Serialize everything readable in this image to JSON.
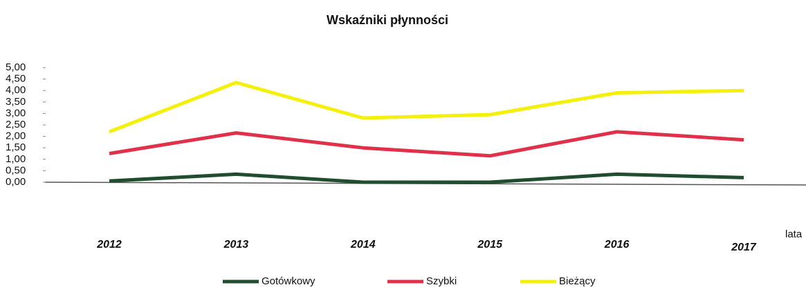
{
  "chart_data": {
    "type": "line",
    "title": "Wskaźniki płynności",
    "x_label": "lata",
    "categories": [
      "2012",
      "2013",
      "2014",
      "2015",
      "2016",
      "2017"
    ],
    "series": [
      {
        "name": "Gotówkowy",
        "color": "#1f4d2e",
        "values": [
          0.05,
          0.35,
          0.0,
          0.0,
          0.35,
          0.2
        ]
      },
      {
        "name": "Szybki",
        "color": "#e0304a",
        "values": [
          1.25,
          2.15,
          1.5,
          1.15,
          2.2,
          1.85
        ]
      },
      {
        "name": "Bieżący",
        "color": "#f5f00a",
        "values": [
          2.2,
          4.35,
          2.8,
          2.95,
          3.9,
          4.0
        ]
      }
    ],
    "ylim": [
      0,
      5
    ],
    "yticks": [
      {
        "value": 0,
        "label": "0,00"
      },
      {
        "value": 0.5,
        "label": "0,50"
      },
      {
        "value": 1,
        "label": "1,00"
      },
      {
        "value": 1.5,
        "label": "1,50"
      },
      {
        "value": 2,
        "label": "2,00"
      },
      {
        "value": 2.5,
        "label": "2,50"
      },
      {
        "value": 3,
        "label": "3,00"
      },
      {
        "value": 3.5,
        "label": "3,50"
      },
      {
        "value": 4,
        "label": "4,00"
      },
      {
        "value": 4.5,
        "label": "4,50"
      },
      {
        "value": 5,
        "label": "5,00"
      }
    ],
    "legend": "bottom"
  }
}
